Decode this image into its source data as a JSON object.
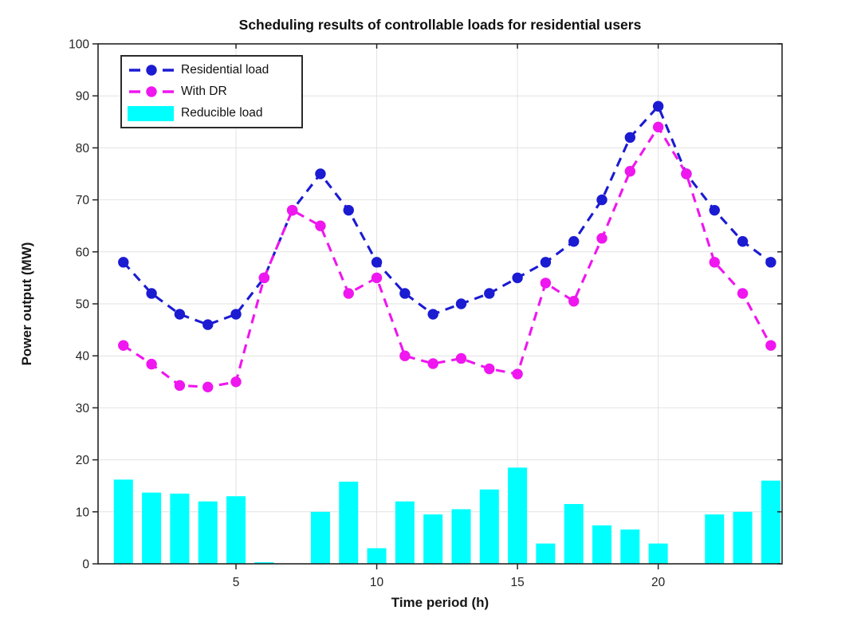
{
  "chart_data": {
    "type": "combo",
    "title": "Scheduling results of controllable loads for residential users",
    "xlabel": "Time period (h)",
    "ylabel": "Power output (MW)",
    "x": [
      1,
      2,
      3,
      4,
      5,
      6,
      7,
      8,
      9,
      10,
      11,
      12,
      13,
      14,
      15,
      16,
      17,
      18,
      19,
      20,
      21,
      22,
      23,
      24
    ],
    "series": [
      {
        "name": "Residential load",
        "type": "line",
        "line_style": "dashed",
        "marker": "circle",
        "color": "#1b1bd2",
        "values": [
          58,
          52,
          48,
          46,
          48,
          55,
          68,
          75,
          68,
          58,
          52,
          48,
          50,
          52,
          55,
          58,
          62,
          70,
          82,
          88,
          75,
          68,
          62,
          58
        ]
      },
      {
        "name": "With DR",
        "type": "line",
        "line_style": "dashed",
        "marker": "circle",
        "color": "#ef16ef",
        "values": [
          42,
          38.4,
          34.3,
          34,
          35,
          55,
          68,
          65,
          52,
          55,
          40,
          38.5,
          39.5,
          37.5,
          36.5,
          54,
          50.5,
          62.6,
          75.5,
          84,
          75,
          58,
          52,
          42
        ]
      },
      {
        "name": "Reducible load",
        "type": "bar",
        "color": "#00ffff",
        "values": [
          16.2,
          13.7,
          13.5,
          12,
          13,
          0.3,
          0,
          10,
          15.8,
          3,
          12,
          9.5,
          10.5,
          14.3,
          18.5,
          3.9,
          11.5,
          7.4,
          6.6,
          3.9,
          0,
          9.5,
          10,
          16
        ]
      }
    ],
    "xlim": [
      0.1,
      24.4
    ],
    "ylim": [
      0,
      100
    ],
    "xticks": [
      5,
      10,
      15,
      20
    ],
    "yticks": [
      0,
      10,
      20,
      30,
      40,
      50,
      60,
      70,
      80,
      90,
      100
    ],
    "grid": true,
    "legend_position": "top-left",
    "colors": {
      "axis": "#252525",
      "grid": "#e2e2e2",
      "tick_label": "#242424",
      "background": "#ffffff"
    }
  }
}
